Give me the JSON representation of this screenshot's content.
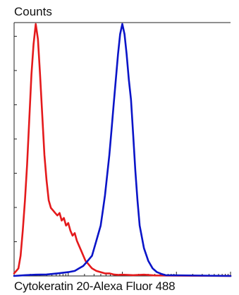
{
  "chart_data": {
    "type": "line",
    "title": "",
    "ylabel": "Counts",
    "xlabel": "Cytokeratin 20-Alexa Fluor 488",
    "xlim": [
      0,
      100
    ],
    "ylim": [
      0,
      100
    ],
    "x_scale": "log",
    "grid": false,
    "legend": "none",
    "series": [
      {
        "color": "#e41a1c",
        "x": [
          0,
          1,
          2,
          3,
          4,
          5,
          6,
          7,
          8,
          9,
          10,
          11,
          12,
          13,
          14,
          15,
          16,
          17,
          18,
          19,
          20,
          21,
          22,
          23,
          24,
          25,
          26,
          27,
          28,
          29,
          30,
          31,
          32,
          33,
          34,
          35,
          36,
          38,
          40,
          42,
          44,
          46,
          48,
          50,
          55,
          60,
          65,
          100
        ],
        "y": [
          1,
          2,
          3,
          8,
          18,
          30,
          44,
          62,
          80,
          92,
          100,
          94,
          80,
          64,
          48,
          38,
          30,
          27,
          26,
          25,
          24,
          25,
          22,
          23,
          20,
          21,
          18,
          16,
          17,
          14,
          12,
          10,
          8,
          6,
          5,
          4,
          3,
          2,
          1.5,
          1,
          1,
          0.6,
          0.4,
          0.5,
          0.3,
          0.5,
          0.2,
          0
        ]
      },
      {
        "color": "#0a14c8",
        "x": [
          0,
          5,
          10,
          15,
          20,
          25,
          28,
          30,
          32,
          34,
          36,
          37,
          38,
          40,
          41,
          42,
          43,
          44,
          45,
          46,
          47,
          48,
          49,
          50,
          51,
          52,
          53,
          54,
          55,
          56,
          57,
          58,
          60,
          62,
          64,
          66,
          68,
          70,
          100
        ],
        "y": [
          0,
          0.3,
          0.5,
          0.6,
          1,
          1.5,
          2,
          3,
          4,
          6,
          8,
          11,
          14,
          20,
          26,
          32,
          40,
          48,
          58,
          68,
          78,
          88,
          96,
          100,
          96,
          88,
          78,
          70,
          56,
          42,
          30,
          20,
          11,
          6,
          3,
          1.5,
          0.8,
          0.3,
          0
        ]
      }
    ]
  }
}
